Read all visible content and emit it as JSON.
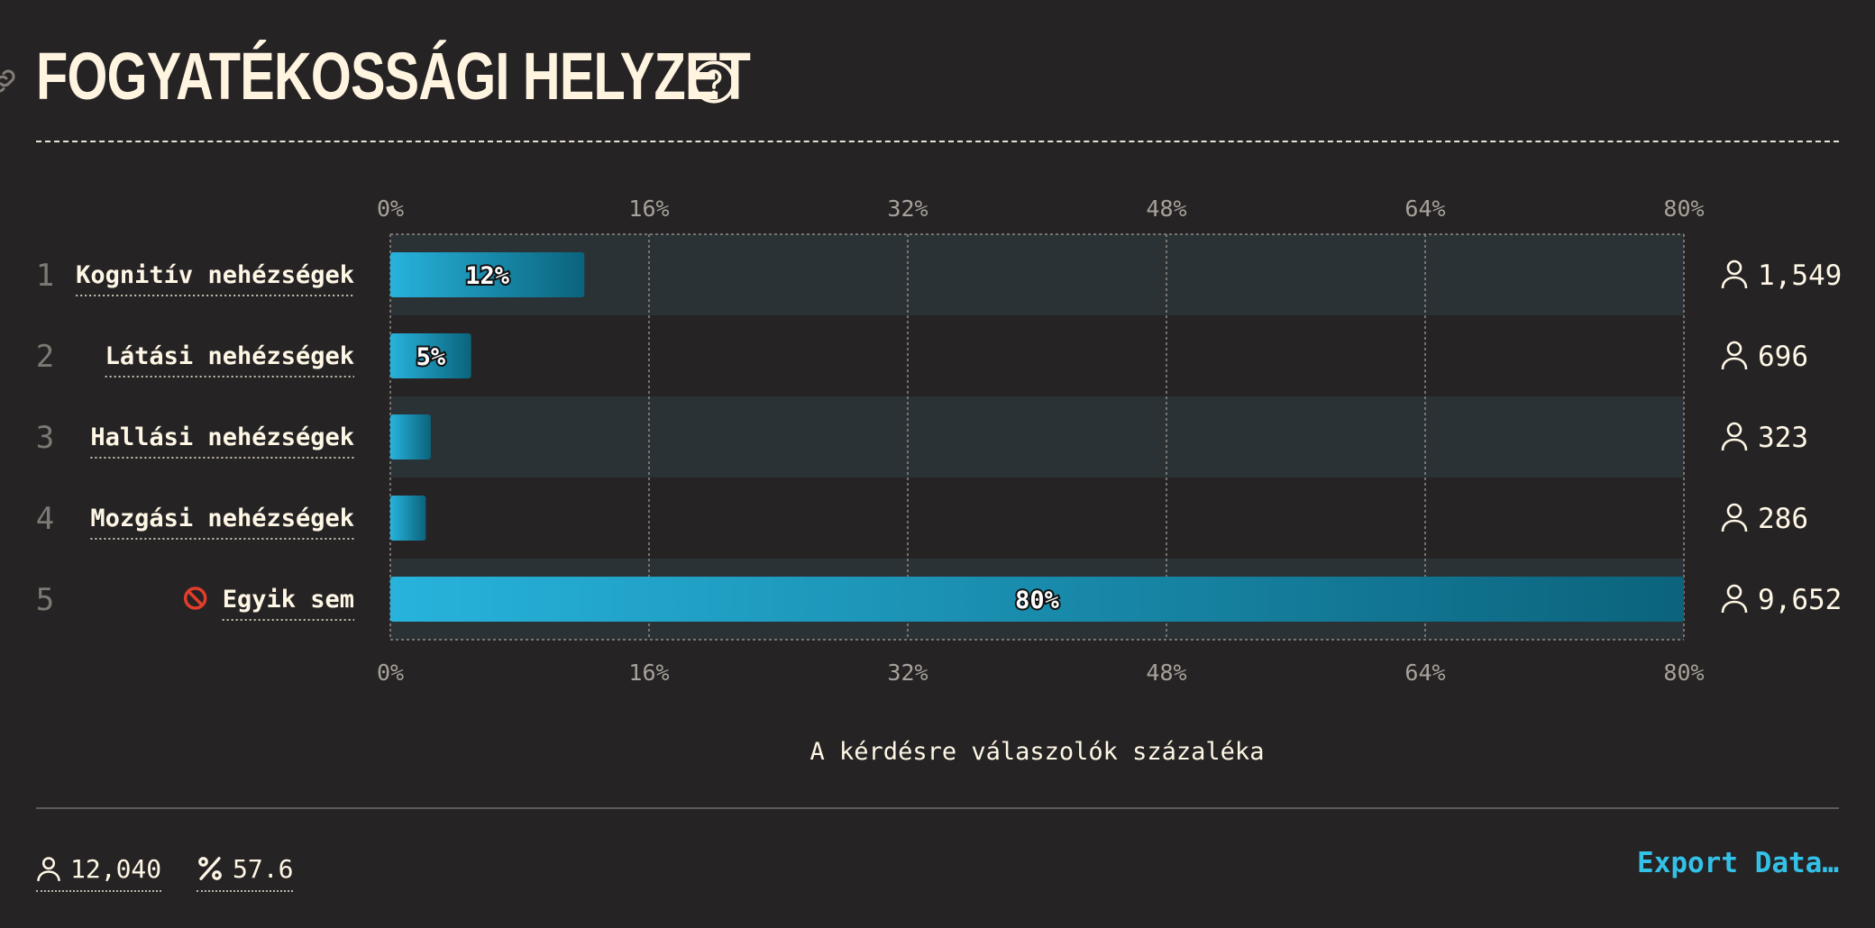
{
  "header": {
    "title": "FOGYATÉKOSSÁGI HELYZET",
    "link_icon": "link-icon",
    "help_icon": "question-circle-icon"
  },
  "chart_data": {
    "type": "bar",
    "orientation": "horizontal",
    "categories": [
      "Kognitív nehézségek",
      "Látási nehézségek",
      "Hallási nehézségek",
      "Mozgási nehézségek",
      "Egyik sem"
    ],
    "ranks": [
      "1",
      "2",
      "3",
      "4",
      "5"
    ],
    "category_icons": [
      "",
      "",
      "",
      "",
      "no-entry-icon"
    ],
    "values": [
      12,
      5,
      2.5,
      2.2,
      80
    ],
    "value_labels": [
      "12%",
      "5%",
      "",
      "",
      "80%"
    ],
    "counts": [
      "1,549",
      "696",
      "323",
      "286",
      "9,652"
    ],
    "count_icon": "person-icon",
    "xlim": [
      0,
      80
    ],
    "ticks": [
      "0%",
      "16%",
      "32%",
      "48%",
      "64%",
      "80%"
    ],
    "xlabel": "A kérdésre válaszolók százaléka",
    "grid": true,
    "bar_color_start": "#27b3dc",
    "bar_color_end": "#0b637c",
    "stripe_color": "#2b3236"
  },
  "footer": {
    "responses": "12,040",
    "responses_icon": "person-icon",
    "rate": "57.6",
    "rate_icon": "percent-icon",
    "export_label": "Export Data…"
  }
}
